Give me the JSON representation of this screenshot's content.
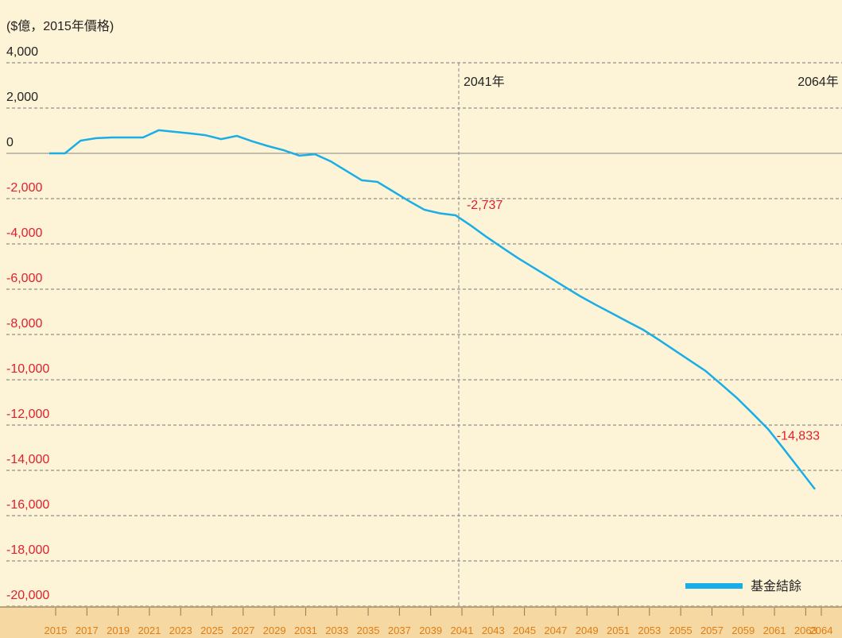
{
  "chart_data": {
    "type": "line",
    "y_label": "($億，2015年價格)",
    "x": [
      2015,
      2016,
      2017,
      2018,
      2019,
      2020,
      2021,
      2022,
      2023,
      2024,
      2025,
      2026,
      2027,
      2028,
      2029,
      2030,
      2031,
      2032,
      2033,
      2034,
      2035,
      2036,
      2037,
      2038,
      2039,
      2040,
      2041,
      2042,
      2043,
      2044,
      2045,
      2046,
      2047,
      2048,
      2049,
      2050,
      2051,
      2052,
      2053,
      2054,
      2055,
      2056,
      2057,
      2058,
      2059,
      2060,
      2061,
      2062,
      2063,
      2064
    ],
    "series": [
      {
        "name": "基金結餘",
        "color": "#1aaee6",
        "values": [
          0,
          0,
          560,
          670,
          700,
          700,
          700,
          1020,
          950,
          880,
          800,
          630,
          770,
          530,
          320,
          140,
          -100,
          -40,
          -350,
          -770,
          -1190,
          -1260,
          -1680,
          -2100,
          -2490,
          -2650,
          -2737,
          -3200,
          -3700,
          -4170,
          -4630,
          -5050,
          -5470,
          -5900,
          -6320,
          -6700,
          -7060,
          -7430,
          -7790,
          -8230,
          -8690,
          -9150,
          -9610,
          -10200,
          -10800,
          -11480,
          -12180,
          -13050,
          -13940,
          -14833
        ],
        "value_labels": [
          null,
          null,
          null,
          null,
          null,
          null,
          null,
          null,
          null,
          null,
          null,
          null,
          null,
          null,
          null,
          null,
          null,
          null,
          null,
          null,
          null,
          null,
          null,
          null,
          null,
          null,
          "-2,737",
          null,
          null,
          null,
          null,
          null,
          null,
          null,
          null,
          null,
          null,
          null,
          null,
          null,
          null,
          null,
          null,
          null,
          null,
          null,
          null,
          null,
          null,
          "-14,833"
        ]
      }
    ],
    "annotations": [
      {
        "x": 2041,
        "label": "2041年"
      },
      {
        "x": 2064,
        "label": "2064年"
      }
    ],
    "xlim": [
      2015,
      2064
    ],
    "xticks": [
      2015,
      2017,
      2019,
      2021,
      2023,
      2025,
      2027,
      2029,
      2031,
      2033,
      2035,
      2037,
      2039,
      2041,
      2043,
      2045,
      2047,
      2049,
      2051,
      2053,
      2055,
      2057,
      2059,
      2061,
      2063,
      2064
    ],
    "ylim": [
      -20000,
      4000
    ],
    "yticks": [
      {
        "value": -20000,
        "label": "-20,000"
      },
      {
        "value": -18000,
        "label": "-18,000"
      },
      {
        "value": -16000,
        "label": "-16,000"
      },
      {
        "value": -14000,
        "label": "-14,000"
      },
      {
        "value": -12000,
        "label": "-12,000"
      },
      {
        "value": -10000,
        "label": "-10,000"
      },
      {
        "value": -8000,
        "label": "-8,000"
      },
      {
        "value": -6000,
        "label": "-6,000"
      },
      {
        "value": -4000,
        "label": "-4,000"
      },
      {
        "value": -2000,
        "label": "-2,000"
      },
      0,
      {
        "value": 2000,
        "label": "2,000"
      },
      {
        "value": 4000,
        "label": "4,000"
      }
    ],
    "grid": true,
    "legend": "lower right"
  }
}
